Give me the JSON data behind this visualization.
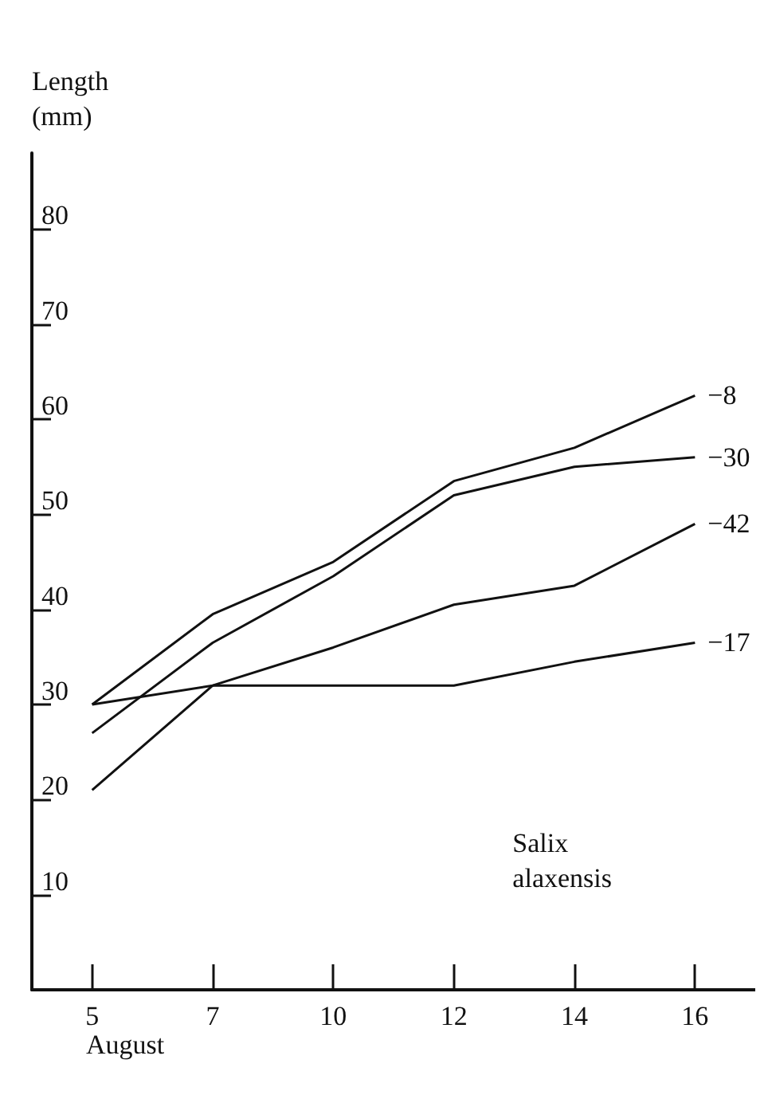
{
  "chart_data": {
    "type": "line",
    "ylabel": "Length\n(mm)",
    "xlabel": "August",
    "categories": [
      "5",
      "7",
      "10",
      "12",
      "14",
      "16"
    ],
    "series": [
      {
        "name": "−8",
        "color": "#111111",
        "values": [
          30,
          39.5,
          45,
          53.5,
          57,
          62.5
        ]
      },
      {
        "name": "−30",
        "color": "#111111",
        "values": [
          27,
          36.5,
          43.5,
          52,
          55,
          56
        ]
      },
      {
        "name": "−42",
        "color": "#111111",
        "values": [
          30,
          32,
          36,
          40.5,
          42.5,
          49
        ]
      },
      {
        "name": "−17",
        "color": "#111111",
        "values": [
          21,
          32,
          32,
          32,
          34.5,
          36.5
        ]
      }
    ],
    "ylim": [
      0,
      88
    ],
    "yticks": [
      10,
      20,
      30,
      40,
      50,
      60,
      70,
      80
    ],
    "grid": false,
    "legend": false,
    "marker": "none",
    "line_style": "solid",
    "annotations": [
      "Salix\nalaxensis"
    ]
  }
}
